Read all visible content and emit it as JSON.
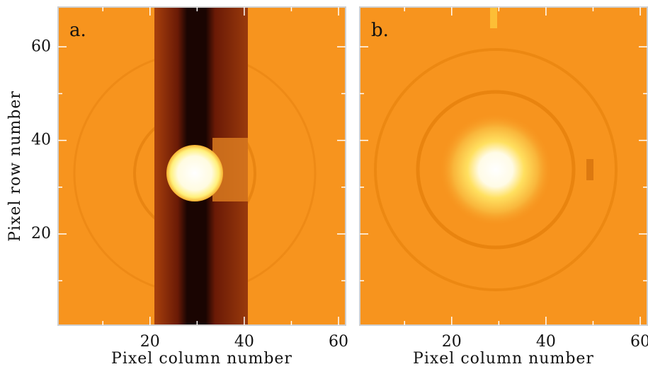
{
  "chart_data": [
    {
      "type": "image",
      "label": "a.",
      "xlabel": "Pixel column number",
      "ylabel": "Pixel row number",
      "xlim": [
        0.5,
        61.5
      ],
      "ylim": [
        0.5,
        68.5
      ],
      "xticks": [
        20,
        40,
        60
      ],
      "yticks": [
        20,
        40,
        60
      ],
      "xminorticks": [
        10,
        30,
        50
      ],
      "yminorticks": [
        10,
        30,
        50
      ],
      "show_ytick_labels": true,
      "tick_color": "#ffffff"
    },
    {
      "type": "image",
      "label": "b.",
      "xlabel": "Pixel column number",
      "xlim": [
        0.5,
        61.5
      ],
      "ylim": [
        0.5,
        68.5
      ],
      "xticks": [
        20,
        40,
        60
      ],
      "yticks": [
        20,
        40,
        60
      ],
      "xminorticks": [
        10,
        30,
        50
      ],
      "yminorticks": [
        10,
        30,
        50
      ],
      "show_ytick_labels": false,
      "tick_color": "#ffffff"
    }
  ]
}
